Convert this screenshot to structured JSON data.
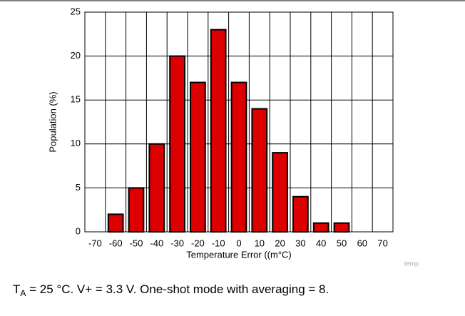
{
  "chart_data": {
    "type": "bar",
    "ylabel": "Population (%)",
    "xlabel": "Temperature Error ((m°C)",
    "watermark": "temp",
    "categories": [
      "-70",
      "-60",
      "-50",
      "-40",
      "-30",
      "-20",
      "-10",
      "0",
      "10",
      "20",
      "30",
      "40",
      "50",
      "60",
      "70"
    ],
    "values": [
      0,
      2,
      5,
      10,
      20,
      17,
      23,
      17,
      14,
      9,
      4,
      1,
      1,
      0,
      0
    ],
    "color": "#dd0000",
    "ylim": [
      0,
      25
    ],
    "yticks": [
      0,
      5,
      10,
      15,
      20,
      25
    ],
    "grid": true
  },
  "caption": {
    "symbol": "T",
    "subscript": "A",
    "text": " = 25 °C. V+ = 3.3 V. One-shot mode with averaging = 8."
  }
}
